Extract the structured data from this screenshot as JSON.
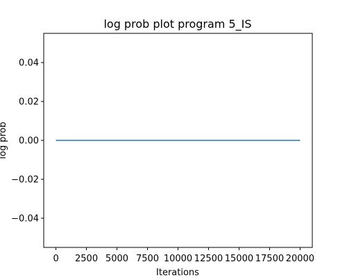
{
  "chart_data": {
    "type": "line",
    "title": "log prob plot program 5_IS",
    "xlabel": "Iterations",
    "ylabel": "log prob",
    "xlim": [
      -1000,
      21000
    ],
    "ylim": [
      -0.055,
      0.055
    ],
    "xticks": [
      0,
      2500,
      5000,
      7500,
      10000,
      12500,
      15000,
      17500,
      20000
    ],
    "xtick_labels": [
      "0",
      "2500",
      "5000",
      "7500",
      "10000",
      "12500",
      "15000",
      "17500",
      "20000"
    ],
    "yticks": [
      -0.04,
      -0.02,
      0.0,
      0.02,
      0.04
    ],
    "ytick_labels": [
      "−0.04",
      "−0.02",
      "0.00",
      "0.02",
      "0.04"
    ],
    "series": [
      {
        "name": "log prob",
        "color": "#1f77b4",
        "x": [
          0,
          20000
        ],
        "y": [
          0,
          0
        ]
      }
    ],
    "grid": false,
    "legend": "none"
  }
}
